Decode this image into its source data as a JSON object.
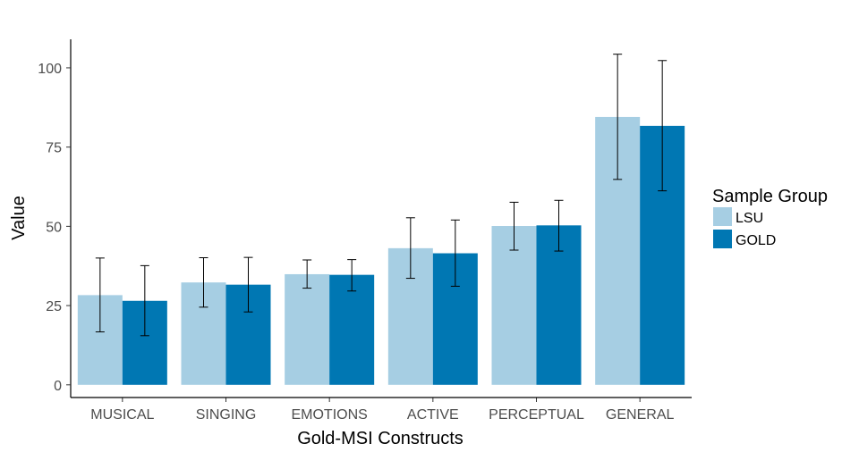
{
  "chart_data": {
    "type": "bar",
    "title": "",
    "xlabel": "Gold-MSI Constructs",
    "ylabel": "Value",
    "ylim": [
      -4,
      109
    ],
    "yticks": [
      0,
      25,
      50,
      75,
      100
    ],
    "categories": [
      "MUSICAL",
      "SINGING",
      "EMOTIONS",
      "ACTIVE",
      "PERCEPTUAL",
      "GENERAL"
    ],
    "series": [
      {
        "name": "LSU",
        "color": "#a6cee3",
        "values": [
          28.3,
          32.3,
          34.9,
          43.1,
          50.1,
          84.5
        ],
        "error_low": [
          16.7,
          24.5,
          30.5,
          33.6,
          42.5,
          64.8
        ],
        "error_high": [
          40.0,
          40.1,
          39.4,
          52.7,
          57.6,
          104.3
        ]
      },
      {
        "name": "GOLD",
        "color": "#0077b3",
        "values": [
          26.5,
          31.6,
          34.7,
          41.5,
          50.3,
          81.7
        ],
        "error_low": [
          15.5,
          23.0,
          29.6,
          31.1,
          42.2,
          61.2
        ],
        "error_high": [
          37.6,
          40.2,
          39.5,
          52.0,
          58.2,
          102.3
        ]
      }
    ],
    "grid": false,
    "legend": {
      "title": "Sample Group",
      "position": "right"
    }
  }
}
